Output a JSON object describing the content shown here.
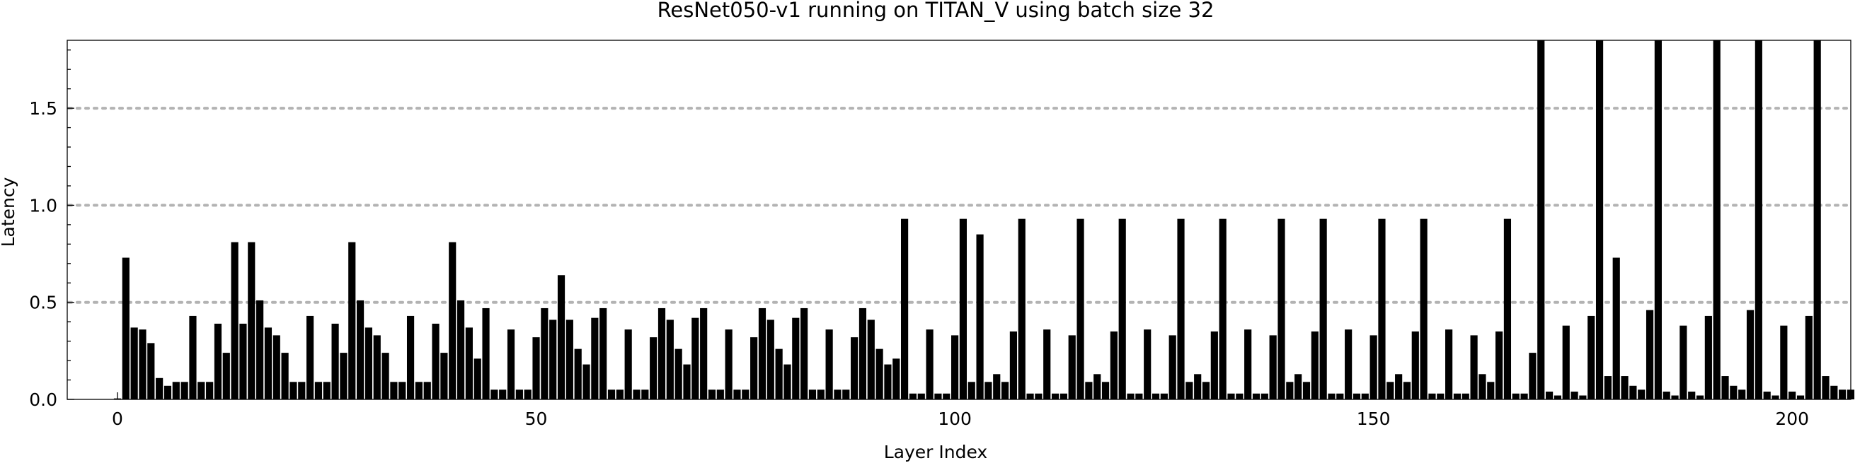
{
  "chart_data": {
    "type": "bar",
    "title": "ResNet050-v1 running on TITAN_V using batch size 32",
    "xlabel": "Layer Index",
    "ylabel": "Latency",
    "xlim": [
      -6,
      207
    ],
    "ylim": [
      0,
      1.85
    ],
    "x_ticks": [
      0,
      50,
      100,
      150,
      200
    ],
    "x_tick_labels": [
      "0",
      "50",
      "100",
      "150",
      "200"
    ],
    "y_ticks": [
      0.0,
      0.5,
      1.0,
      1.5
    ],
    "y_tick_labels": [
      "0.0",
      "0.5",
      "1.0",
      "1.5"
    ],
    "gridlines_y": [
      0.5,
      1.0,
      1.5
    ],
    "grid": "horizontal dotted",
    "bar_color": "#000000",
    "x_start": 0,
    "values": [
      0.005,
      0.73,
      0.37,
      0.36,
      0.29,
      0.11,
      0.07,
      0.09,
      0.09,
      0.43,
      0.09,
      0.09,
      0.39,
      0.24,
      0.81,
      0.39,
      0.81,
      0.51,
      0.37,
      0.33,
      0.24,
      0.09,
      0.09,
      0.43,
      0.09,
      0.09,
      0.39,
      0.24,
      0.81,
      0.51,
      0.37,
      0.33,
      0.24,
      0.09,
      0.09,
      0.43,
      0.09,
      0.09,
      0.39,
      0.24,
      0.81,
      0.51,
      0.37,
      0.21,
      0.47,
      0.05,
      0.05,
      0.36,
      0.05,
      0.05,
      0.32,
      0.47,
      0.41,
      0.64,
      0.41,
      0.26,
      0.18,
      0.42,
      0.47,
      0.05,
      0.05,
      0.36,
      0.05,
      0.05,
      0.32,
      0.47,
      0.41,
      0.26,
      0.18,
      0.42,
      0.47,
      0.05,
      0.05,
      0.36,
      0.05,
      0.05,
      0.32,
      0.47,
      0.41,
      0.26,
      0.18,
      0.42,
      0.47,
      0.05,
      0.05,
      0.36,
      0.05,
      0.05,
      0.32,
      0.47,
      0.41,
      0.26,
      0.18,
      0.21,
      0.93,
      0.03,
      0.03,
      0.36,
      0.03,
      0.03,
      0.33,
      0.93,
      0.09,
      0.85,
      0.09,
      0.13,
      0.09,
      0.35,
      0.93,
      0.03,
      0.03,
      0.36,
      0.03,
      0.03,
      0.33,
      0.93,
      0.09,
      0.13,
      0.09,
      0.35,
      0.93,
      0.03,
      0.03,
      0.36,
      0.03,
      0.03,
      0.33,
      0.93,
      0.09,
      0.13,
      0.09,
      0.35,
      0.93,
      0.03,
      0.03,
      0.36,
      0.03,
      0.03,
      0.33,
      0.93,
      0.09,
      0.13,
      0.09,
      0.35,
      0.93,
      0.03,
      0.03,
      0.36,
      0.03,
      0.03,
      0.33,
      0.93,
      0.09,
      0.13,
      0.09,
      0.35,
      0.93,
      0.03,
      0.03,
      0.36,
      0.03,
      0.03,
      0.33,
      0.13,
      0.09,
      0.35,
      0.93,
      0.03,
      0.03,
      0.24,
      1.85,
      0.04,
      0.02,
      0.38,
      0.04,
      0.02,
      0.43,
      1.85,
      0.12,
      0.73,
      0.12,
      0.07,
      0.05,
      0.46,
      1.85,
      0.04,
      0.02,
      0.38,
      0.04,
      0.02,
      0.43,
      1.85,
      0.12,
      0.07,
      0.05,
      0.46,
      1.85,
      0.04,
      0.02,
      0.38,
      0.04,
      0.02,
      0.43,
      1.85,
      0.12,
      0.07,
      0.05,
      0.05
    ]
  }
}
